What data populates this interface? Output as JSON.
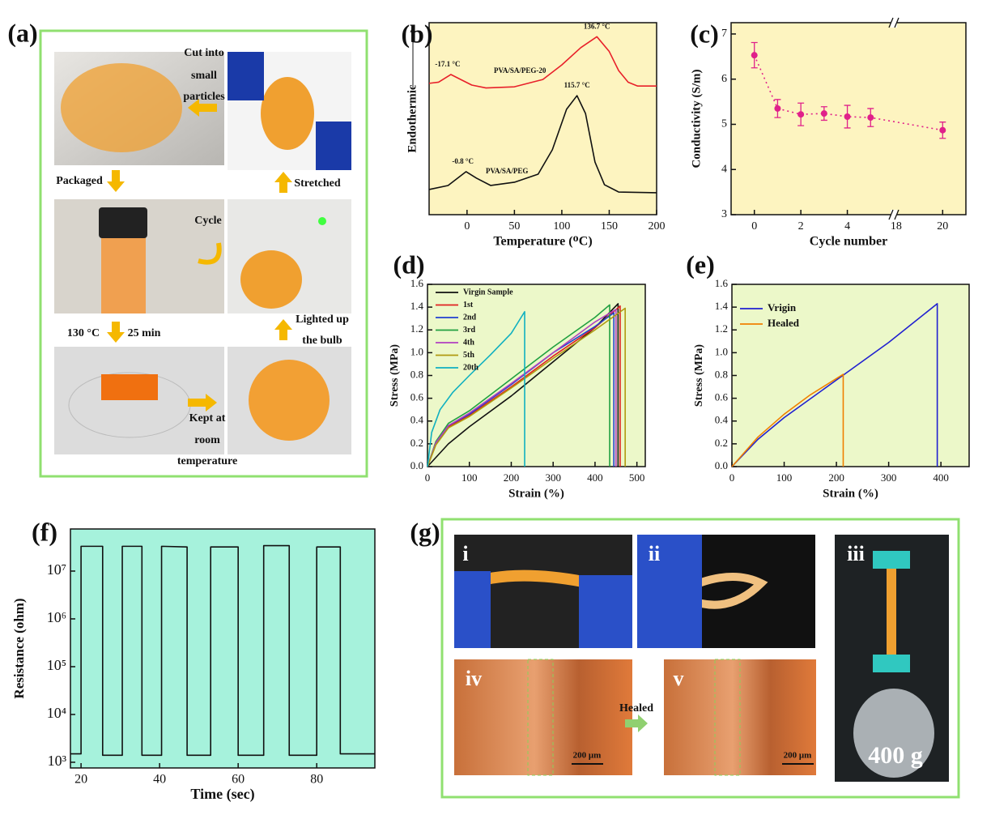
{
  "panel_a": {
    "label": "(a)",
    "captions": [
      [
        "Cut into",
        "small",
        "particles"
      ],
      [
        "Stretched"
      ],
      [
        "Packaged"
      ],
      [
        "Cycle"
      ],
      [
        "Lighted up",
        "the bulb"
      ],
      [
        "130 °C"
      ],
      [
        "25 min"
      ],
      [
        "Kept at",
        "room",
        "temperature"
      ]
    ]
  },
  "panel_g": {
    "label": "(g)",
    "photo_labels": [
      "i",
      "ii",
      "iii",
      "iv",
      "v"
    ],
    "arrow_label": "Healed",
    "scale_bars": [
      "200 μm",
      "200 μm"
    ],
    "weight": "400 g"
  },
  "chart_data": [
    {
      "type": "line",
      "label": "(b)",
      "xlabel": "Temperature (ᴼC)",
      "ylabel": "Endothermic",
      "xlim": [
        -40,
        200
      ],
      "xticks": [
        0,
        50,
        100,
        150,
        200
      ],
      "ylim": [
        0,
        10
      ],
      "series": [
        {
          "name": "PVA/SA/PEG-20",
          "color": "#e8202a",
          "x": [
            -40,
            -30,
            -17,
            -5,
            5,
            20,
            50,
            80,
            100,
            120,
            137,
            150,
            160,
            170,
            180,
            200
          ],
          "values": [
            6.84,
            6.9,
            7.3,
            7.0,
            6.75,
            6.6,
            6.66,
            7.04,
            7.8,
            8.7,
            9.27,
            8.5,
            7.5,
            6.9,
            6.7,
            6.7
          ]
        },
        {
          "name": "PVA/SA/PEG",
          "color": "#111111",
          "x": [
            -40,
            -20,
            -1,
            10,
            25,
            50,
            75,
            90,
            105,
            116,
            125,
            135,
            145,
            160,
            200
          ],
          "values": [
            1.31,
            1.52,
            2.24,
            1.9,
            1.52,
            1.69,
            2.11,
            3.38,
            5.49,
            6.2,
            5.27,
            2.74,
            1.56,
            1.18,
            1.14
          ]
        }
      ],
      "annotations": [
        {
          "text": "-17.1 °C",
          "x": -17,
          "y": 7.3
        },
        {
          "text": "136.7 °C",
          "x": 137,
          "y": 9.27
        },
        {
          "text": "115.7 °C",
          "x": 116,
          "y": 6.2
        },
        {
          "text": "-0.8 °C",
          "x": -1,
          "y": 2.24
        }
      ]
    },
    {
      "type": "line",
      "label": "(c)",
      "xlabel": "Cycle number",
      "ylabel": "Conductivity (S/m)",
      "xlim": [
        -1,
        21
      ],
      "xbreak": [
        6,
        17.9
      ],
      "xticks": [
        0,
        2,
        4,
        18,
        20
      ],
      "ylim": [
        3,
        7.25
      ],
      "yticks": [
        3,
        4,
        5,
        6,
        7
      ],
      "marker": true,
      "dash": true,
      "series": [
        {
          "name": "Conductivity",
          "color": "#e0218a",
          "x": [
            0,
            1,
            2,
            3,
            4,
            5,
            20
          ],
          "values": [
            6.53,
            5.35,
            5.22,
            5.24,
            5.17,
            5.15,
            4.87
          ],
          "errors": [
            0.28,
            0.2,
            0.25,
            0.15,
            0.25,
            0.2,
            0.18
          ]
        }
      ]
    },
    {
      "type": "line",
      "label": "(d)",
      "xlabel": "Strain (%)",
      "ylabel": "Stress (MPa)",
      "legend": "upper left",
      "xlim": [
        0,
        520
      ],
      "xticks": [
        0,
        100,
        200,
        300,
        400,
        500
      ],
      "ylim": [
        0,
        1.6
      ],
      "yticks": [
        {
          "value": 0,
          "label": "0.0"
        },
        0.2,
        0.4,
        0.6,
        0.8,
        {
          "value": 1,
          "label": "1.0"
        },
        1.2,
        1.4,
        1.6
      ],
      "series": [
        {
          "name": "Virgin Sample",
          "color": "#111111",
          "x": [
            0,
            50,
            100,
            200,
            300,
            400,
            455,
            455
          ],
          "values": [
            0,
            0.2,
            0.35,
            0.62,
            0.92,
            1.22,
            1.43,
            0
          ]
        },
        {
          "name": "1st",
          "color": "#e02020",
          "x": [
            0,
            20,
            50,
            100,
            200,
            300,
            400,
            460,
            460
          ],
          "values": [
            0,
            0.2,
            0.35,
            0.45,
            0.7,
            0.97,
            1.22,
            1.41,
            0
          ]
        },
        {
          "name": "2nd",
          "color": "#2040d0",
          "x": [
            0,
            20,
            50,
            100,
            200,
            300,
            400,
            445,
            445
          ],
          "values": [
            0,
            0.2,
            0.36,
            0.46,
            0.72,
            1.0,
            1.23,
            1.35,
            0
          ]
        },
        {
          "name": "3rd",
          "color": "#20a040",
          "x": [
            0,
            20,
            50,
            100,
            200,
            300,
            400,
            435,
            435
          ],
          "values": [
            0,
            0.22,
            0.38,
            0.49,
            0.77,
            1.05,
            1.31,
            1.42,
            0
          ]
        },
        {
          "name": "4th",
          "color": "#b040c0",
          "x": [
            0,
            20,
            50,
            100,
            200,
            300,
            400,
            450,
            450
          ],
          "values": [
            0,
            0.21,
            0.36,
            0.47,
            0.73,
            1.0,
            1.27,
            1.38,
            0
          ]
        },
        {
          "name": "5th",
          "color": "#b09a10",
          "x": [
            0,
            20,
            50,
            100,
            200,
            300,
            400,
            472,
            472
          ],
          "values": [
            0,
            0.19,
            0.34,
            0.44,
            0.69,
            0.95,
            1.2,
            1.39,
            0
          ]
        },
        {
          "name": "20th",
          "color": "#10b0c0",
          "x": [
            0,
            10,
            30,
            60,
            100,
            150,
            200,
            232,
            232
          ],
          "values": [
            0,
            0.3,
            0.5,
            0.65,
            0.8,
            0.98,
            1.17,
            1.36,
            0
          ]
        }
      ]
    },
    {
      "type": "line",
      "label": "(e)",
      "xlabel": "Strain (%)",
      "ylabel": "Stress (MPa)",
      "legend": "upper left",
      "xlim": [
        0,
        454
      ],
      "xticks": [
        0,
        100,
        200,
        300,
        400
      ],
      "ylim": [
        0,
        1.6
      ],
      "yticks": [
        {
          "value": 0,
          "label": "0.0"
        },
        0.2,
        0.4,
        0.6,
        0.8,
        {
          "value": 1,
          "label": "1.0"
        },
        1.2,
        1.4,
        1.6
      ],
      "series": [
        {
          "name": "Vrigin",
          "color": "#2020d0",
          "x": [
            0,
            50,
            100,
            200,
            300,
            393,
            393
          ],
          "values": [
            0,
            0.24,
            0.43,
            0.76,
            1.09,
            1.43,
            0
          ]
        },
        {
          "name": "Healed",
          "color": "#f08000",
          "x": [
            0,
            50,
            100,
            150,
            213,
            213
          ],
          "values": [
            0,
            0.26,
            0.46,
            0.63,
            0.81,
            0
          ]
        }
      ]
    },
    {
      "type": "line",
      "label": "(f)",
      "xlabel": "Time (sec)",
      "ylabel": "Resistance (ohm)",
      "log_y": true,
      "xlim": [
        17.3,
        94.8
      ],
      "xticks": [
        20,
        40,
        60,
        80
      ],
      "ylim": [
        760,
        76000000
      ],
      "yticks": [
        {
          "value": 1000,
          "label": "10³"
        },
        {
          "value": 10000,
          "label": "10⁴"
        },
        {
          "value": 100000,
          "label": "10⁵"
        },
        {
          "value": 1000000,
          "label": "10⁶"
        },
        {
          "value": 10000000,
          "label": "10⁷"
        }
      ],
      "series": [
        {
          "name": "Resistance",
          "color": "#111111",
          "x": [
            17.3,
            20,
            20,
            25.5,
            25.5,
            30.5,
            30.5,
            35.5,
            35.5,
            40.5,
            40.5,
            47,
            47,
            53,
            53,
            60,
            60,
            66.5,
            66.5,
            73,
            73,
            80,
            80,
            86,
            86,
            94.8
          ],
          "values": [
            1500,
            1500,
            33000000,
            33000000,
            1400,
            1400,
            33000000,
            33000000,
            1400,
            1400,
            33000000,
            32000000,
            1400,
            1400,
            32000000,
            32000000,
            1400,
            1400,
            34000000,
            34000000,
            1400,
            1400,
            32000000,
            32000000,
            1500,
            1500
          ]
        }
      ]
    }
  ]
}
